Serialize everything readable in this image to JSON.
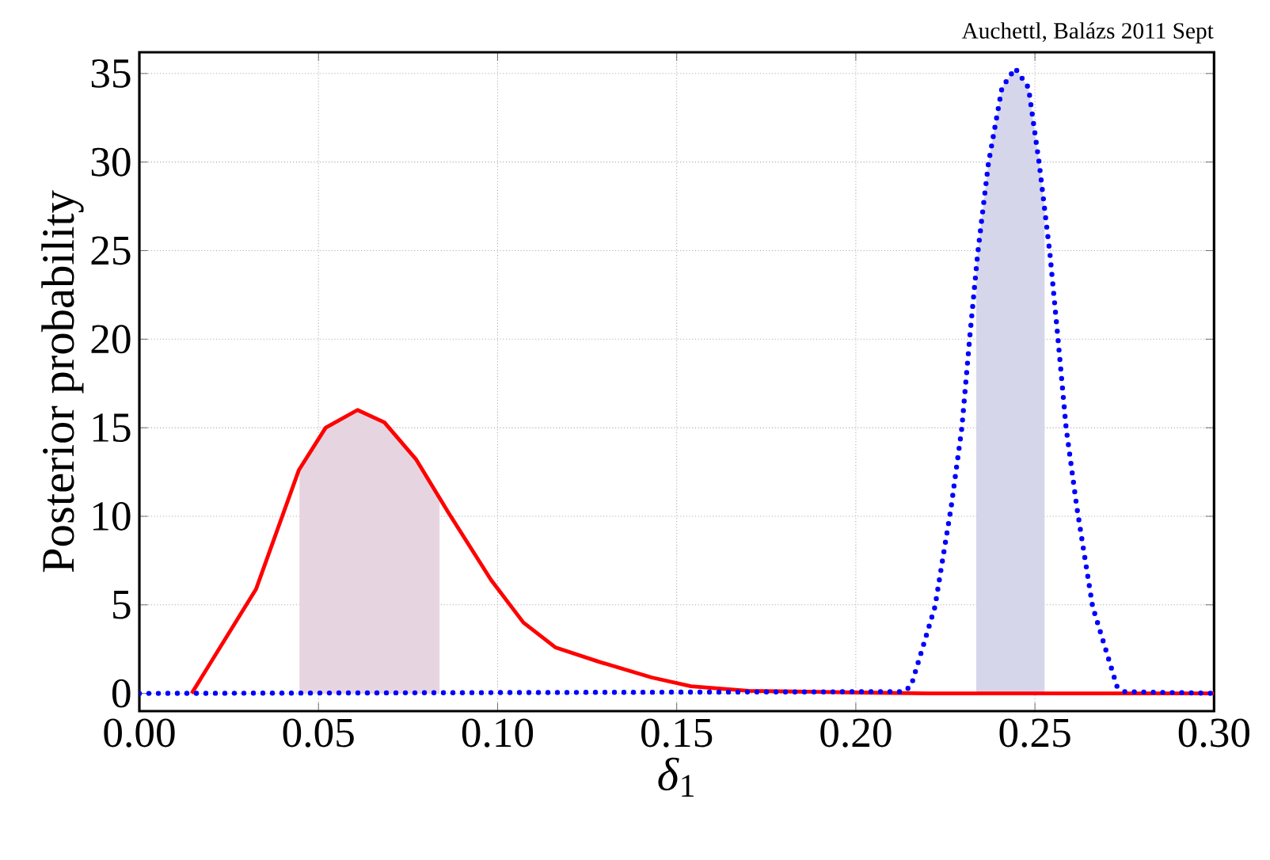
{
  "chart_data": {
    "type": "line",
    "xlabel": "*δ*$_{1}$",
    "ylabel": "Posterior probability",
    "annotations": [
      "Auchettl, Balázs 2011 Sept"
    ],
    "xlim": [
      0,
      0.3
    ],
    "ylim": [
      -1,
      36.2
    ],
    "xticks": [
      {
        "value": 0,
        "label": "0.00"
      },
      {
        "value": 0.05,
        "label": "0.05"
      },
      {
        "value": 0.1,
        "label": "0.10"
      },
      {
        "value": 0.15,
        "label": "0.15"
      },
      {
        "value": 0.2,
        "label": "0.20"
      },
      {
        "value": 0.25,
        "label": "0.25"
      },
      {
        "value": 0.3,
        "label": "0.30"
      }
    ],
    "yticks": [
      0,
      5,
      10,
      15,
      20,
      25,
      30,
      35
    ],
    "grid": true,
    "bands": [
      {
        "axis": "x",
        "from": 0.0447,
        "to": 0.0838,
        "color": "#e6d5e0"
      },
      {
        "axis": "x",
        "from": 0.2336,
        "to": 0.2527,
        "color": "#d6d6ea"
      }
    ],
    "series": [
      {
        "color": "#ff0000",
        "line_style": "solid",
        "x": [
          0.0146,
          0.0326,
          0.0445,
          0.052,
          0.0609,
          0.0684,
          0.0773,
          0.0863,
          0.0982,
          0.1072,
          0.1161,
          0.1281,
          0.143,
          0.154,
          0.17,
          0.2,
          0.22,
          0.3
        ],
        "values": [
          0,
          5.9,
          12.6,
          15.0,
          16.0,
          15.3,
          13.2,
          10.2,
          6.4,
          4.0,
          2.6,
          1.8,
          0.9,
          0.4,
          0.15,
          0.05,
          0,
          0
        ]
      },
      {
        "color": "#0000ff",
        "line_style": "dotted",
        "x": [
          0,
          0.2132,
          0.2154,
          0.2221,
          0.2266,
          0.2296,
          0.2318,
          0.234,
          0.237,
          0.2408,
          0.2445,
          0.2482,
          0.2512,
          0.2542,
          0.2564,
          0.2587,
          0.2617,
          0.2661,
          0.2729,
          0.2751,
          0.3
        ],
        "values": [
          0,
          0.1,
          0.4,
          4.9,
          10.5,
          15.0,
          20.1,
          24.8,
          29.9,
          34.2,
          35.3,
          34.2,
          29.9,
          24.8,
          20.1,
          15.0,
          10.5,
          4.9,
          0.4,
          0.1,
          0
        ]
      }
    ]
  }
}
